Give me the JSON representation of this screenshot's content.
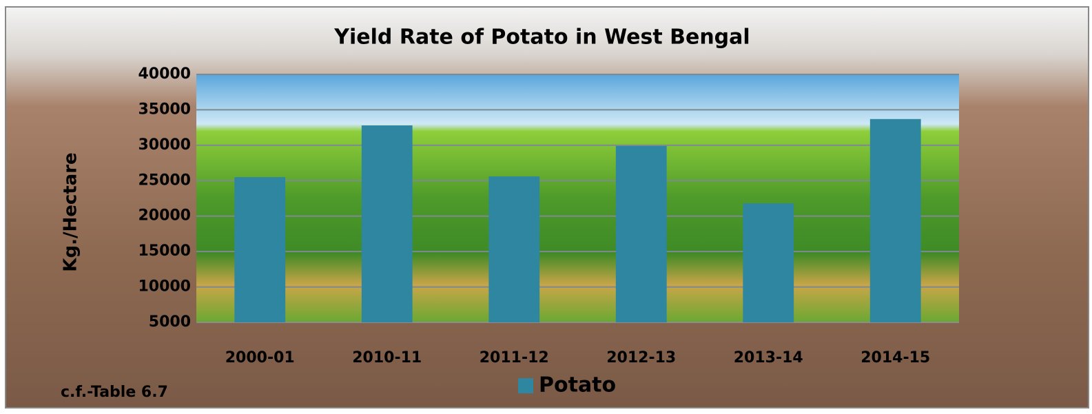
{
  "chart_data": {
    "type": "bar",
    "title": "Yield Rate of Potato in West Bengal",
    "y_label": "Kg./Hectare",
    "annotation": "c.f.-Table 6.7",
    "categories": [
      "2000-01",
      "2010-11",
      "2011-12",
      "2012-13",
      "2013-14",
      "2014-15"
    ],
    "series": [
      {
        "name": "Potato",
        "color": "#2e86a0",
        "values": [
          25500,
          32800,
          25600,
          29900,
          21800,
          33700
        ]
      }
    ],
    "ylim": [
      5000,
      40000
    ],
    "yticks": [
      5000,
      10000,
      15000,
      20000,
      25000,
      30000,
      35000,
      40000
    ],
    "grid": true,
    "legend": "bottom"
  }
}
